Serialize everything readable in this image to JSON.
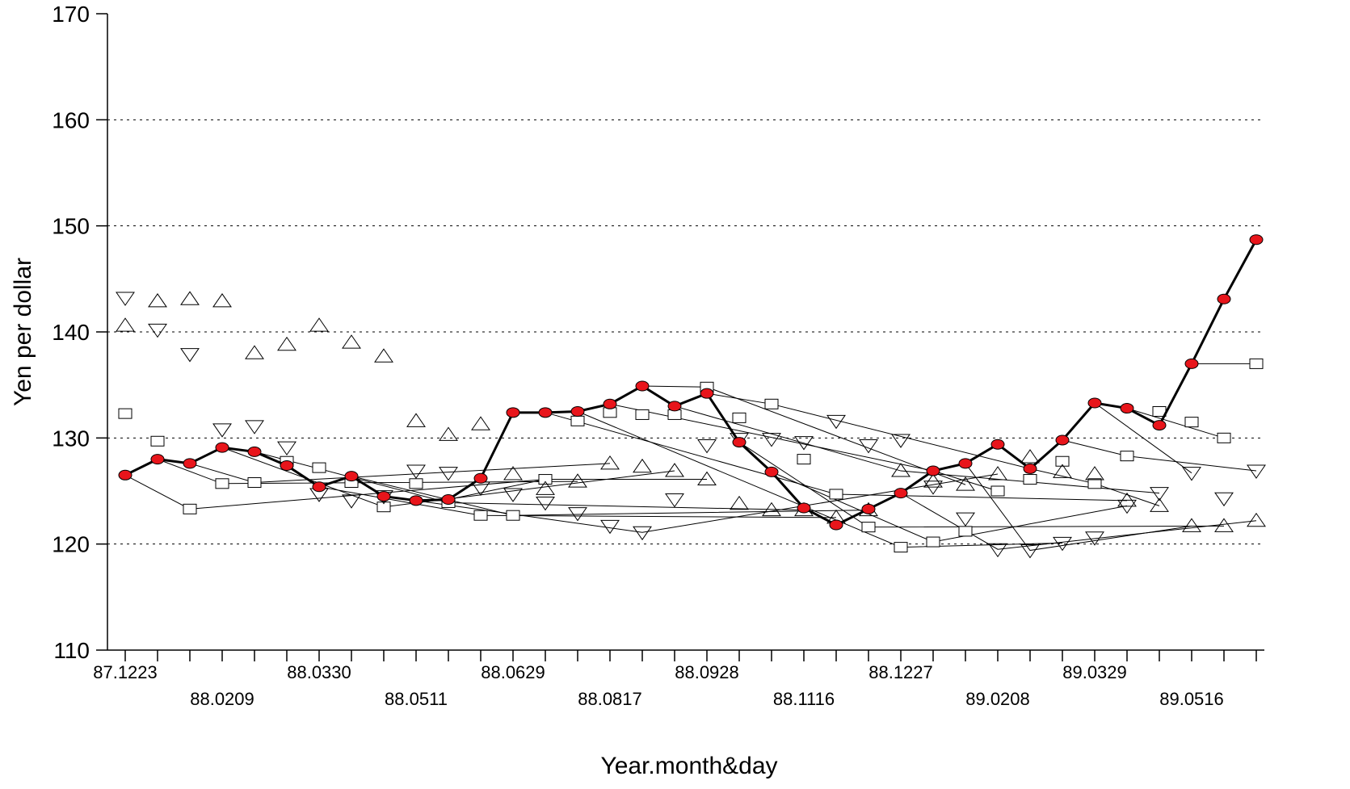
{
  "chart_data": {
    "type": "line",
    "xlabel": "Year.month&day",
    "ylabel": "Yen per dollar",
    "ylim": [
      110,
      170
    ],
    "yticks": [
      110,
      120,
      130,
      140,
      150,
      160,
      170
    ],
    "grid": "dotted horizontal lines at 120-160",
    "x_tick_labels": [
      {
        "index": 0,
        "label": "87.1223",
        "row": 0
      },
      {
        "index": 3,
        "label": "88.0209",
        "row": 1
      },
      {
        "index": 6,
        "label": "88.0330",
        "row": 0
      },
      {
        "index": 9,
        "label": "88.0511",
        "row": 1
      },
      {
        "index": 12,
        "label": "88.0629",
        "row": 0
      },
      {
        "index": 15,
        "label": "88.0817",
        "row": 1
      },
      {
        "index": 18,
        "label": "88.0928",
        "row": 0
      },
      {
        "index": 21,
        "label": "88.1116",
        "row": 1
      },
      {
        "index": 24,
        "label": "88.1227",
        "row": 0
      },
      {
        "index": 27,
        "label": "89.0208",
        "row": 1
      },
      {
        "index": 30,
        "label": "89.0329",
        "row": 0
      },
      {
        "index": 33,
        "label": "89.0516",
        "row": 1
      }
    ],
    "colors": {
      "actual_fill": "#e8151b",
      "actual_line": "#000000",
      "forecast_line": "#000000"
    },
    "series": [
      {
        "marker": "filled-circle",
        "values": [
          126.5,
          128.0,
          127.6,
          129.1,
          128.7,
          127.4,
          125.4,
          126.4,
          124.5,
          124.1,
          124.2,
          126.2,
          132.4,
          132.4,
          132.5,
          133.2,
          134.9,
          133.0,
          134.2,
          129.6,
          126.8,
          123.4,
          121.8,
          123.3,
          124.8,
          126.9,
          127.6,
          129.4,
          127.1,
          129.8,
          133.3,
          132.8,
          131.2,
          137.0,
          143.1,
          148.7
        ]
      },
      {
        "marker": "square",
        "points": [
          [
            0,
            132.3
          ],
          [
            1,
            129.7
          ],
          [
            2,
            123.3
          ],
          [
            3,
            125.7
          ],
          [
            4,
            125.8
          ],
          [
            5,
            127.8
          ],
          [
            6,
            127.2
          ],
          [
            7,
            125.8
          ],
          [
            8,
            123.5
          ],
          [
            9,
            125.7
          ],
          [
            10,
            123.9
          ],
          [
            11,
            122.7
          ],
          [
            12,
            122.7
          ],
          [
            13,
            126.1
          ],
          [
            14,
            131.6
          ],
          [
            15,
            132.4
          ],
          [
            16,
            132.2
          ],
          [
            17,
            132.2
          ],
          [
            18,
            134.8
          ],
          [
            19,
            131.9
          ],
          [
            20,
            133.2
          ],
          [
            21,
            128.0
          ],
          [
            22,
            124.7
          ],
          [
            23,
            121.6
          ],
          [
            24,
            119.7
          ],
          [
            25,
            120.2
          ],
          [
            26,
            121.2
          ],
          [
            27,
            125.0
          ],
          [
            28,
            126.1
          ],
          [
            29,
            127.8
          ],
          [
            30,
            125.7
          ],
          [
            31,
            128.3
          ],
          [
            32,
            132.5
          ],
          [
            33,
            131.5
          ],
          [
            34,
            130.0
          ],
          [
            35,
            137.0
          ]
        ]
      },
      {
        "marker": "triangle-up",
        "points": [
          [
            0,
            140.6
          ],
          [
            1,
            142.9
          ],
          [
            2,
            143.1
          ],
          [
            3,
            142.9
          ],
          [
            4,
            138.0
          ],
          [
            5,
            138.8
          ],
          [
            6,
            140.6
          ],
          [
            7,
            139.0
          ],
          [
            8,
            137.7
          ],
          [
            9,
            131.6
          ],
          [
            10,
            130.3
          ],
          [
            11,
            131.3
          ],
          [
            12,
            126.6
          ],
          [
            13,
            125.2
          ],
          [
            14,
            125.9
          ],
          [
            15,
            127.6
          ],
          [
            16,
            127.3
          ],
          [
            17,
            126.9
          ],
          [
            18,
            126.1
          ],
          [
            19,
            123.8
          ],
          [
            20,
            123.2
          ],
          [
            21,
            123.2
          ],
          [
            22,
            122.5
          ],
          [
            23,
            123.2
          ],
          [
            24,
            126.9
          ],
          [
            25,
            125.9
          ],
          [
            26,
            125.6
          ],
          [
            27,
            126.6
          ],
          [
            28,
            128.2
          ],
          [
            29,
            126.8
          ],
          [
            30,
            126.6
          ],
          [
            31,
            124.1
          ],
          [
            32,
            123.6
          ],
          [
            33,
            121.7
          ],
          [
            34,
            121.7
          ],
          [
            35,
            122.2
          ]
        ]
      },
      {
        "marker": "triangle-down",
        "points": [
          [
            0,
            143.2
          ],
          [
            1,
            140.2
          ],
          [
            2,
            137.9
          ],
          [
            3,
            130.8
          ],
          [
            4,
            131.1
          ],
          [
            5,
            129.1
          ],
          [
            6,
            124.7
          ],
          [
            7,
            124.1
          ],
          [
            8,
            124.5
          ],
          [
            9,
            126.9
          ],
          [
            10,
            126.7
          ],
          [
            11,
            125.3
          ],
          [
            12,
            124.7
          ],
          [
            13,
            123.9
          ],
          [
            14,
            122.9
          ],
          [
            15,
            121.7
          ],
          [
            16,
            121.1
          ],
          [
            17,
            124.2
          ],
          [
            18,
            129.3
          ],
          [
            19,
            129.9
          ],
          [
            20,
            129.9
          ],
          [
            21,
            129.6
          ],
          [
            22,
            131.6
          ],
          [
            23,
            129.3
          ],
          [
            24,
            129.8
          ],
          [
            25,
            125.4
          ],
          [
            26,
            122.4
          ],
          [
            27,
            119.5
          ],
          [
            28,
            119.4
          ],
          [
            29,
            120.1
          ],
          [
            30,
            120.6
          ],
          [
            31,
            123.6
          ],
          [
            32,
            124.8
          ],
          [
            33,
            126.7
          ],
          [
            34,
            124.3
          ],
          [
            35,
            126.9
          ]
        ]
      }
    ],
    "forecast_links": [
      [
        [
          0,
          126.5
        ],
        [
          2,
          123.3
        ],
        [
          13,
          126.1
        ]
      ],
      [
        [
          1,
          128.0
        ],
        [
          3,
          125.7
        ],
        [
          14,
          125.9
        ]
      ],
      [
        [
          2,
          127.6
        ],
        [
          4,
          125.8
        ],
        [
          15,
          127.6
        ]
      ],
      [
        [
          3,
          129.1
        ],
        [
          8,
          123.5
        ],
        [
          17,
          126.9
        ]
      ],
      [
        [
          4,
          128.7
        ],
        [
          10,
          123.9
        ],
        [
          21,
          123.2
        ]
      ],
      [
        [
          6,
          125.4
        ],
        [
          11,
          122.7
        ],
        [
          22,
          122.5
        ]
      ],
      [
        [
          7,
          126.4
        ],
        [
          12,
          122.7
        ],
        [
          23,
          123.2
        ]
      ],
      [
        [
          9,
          124.1
        ],
        [
          16,
          121.1
        ],
        [
          27,
          126.6
        ]
      ],
      [
        [
          10,
          124.2
        ],
        [
          13,
          126.1
        ],
        [
          18,
          126.1
        ]
      ],
      [
        [
          13,
          132.4
        ],
        [
          22,
          124.7
        ],
        [
          31,
          124.1
        ]
      ],
      [
        [
          14,
          132.5
        ],
        [
          24,
          119.7
        ],
        [
          29,
          120.1
        ]
      ],
      [
        [
          15,
          133.2
        ],
        [
          25,
          126.9
        ],
        [
          27,
          125.0
        ]
      ],
      [
        [
          16,
          134.9
        ],
        [
          18,
          134.8
        ],
        [
          26,
          125.6
        ]
      ],
      [
        [
          17,
          133.0
        ],
        [
          24,
          126.9
        ],
        [
          32,
          124.8
        ]
      ],
      [
        [
          18,
          134.2
        ],
        [
          20,
          133.2
        ],
        [
          28,
          127.1
        ]
      ],
      [
        [
          19,
          129.6
        ],
        [
          23,
          121.6
        ],
        [
          34,
          121.7
        ]
      ],
      [
        [
          20,
          126.8
        ],
        [
          25,
          120.2
        ],
        [
          31,
          123.6
        ]
      ],
      [
        [
          24,
          124.8
        ],
        [
          27,
          119.5
        ],
        [
          35,
          122.2
        ]
      ],
      [
        [
          26,
          127.6
        ],
        [
          28,
          119.4
        ],
        [
          33,
          121.7
        ]
      ],
      [
        [
          28,
          127.1
        ],
        [
          30,
          125.7
        ],
        [
          32,
          123.6
        ]
      ],
      [
        [
          29,
          129.8
        ],
        [
          31,
          128.3
        ],
        [
          35,
          126.9
        ]
      ],
      [
        [
          30,
          133.3
        ],
        [
          33,
          126.7
        ]
      ],
      [
        [
          31,
          132.8
        ],
        [
          34,
          130.0
        ]
      ],
      [
        [
          33,
          137.0
        ],
        [
          35,
          137.0
        ]
      ]
    ]
  }
}
